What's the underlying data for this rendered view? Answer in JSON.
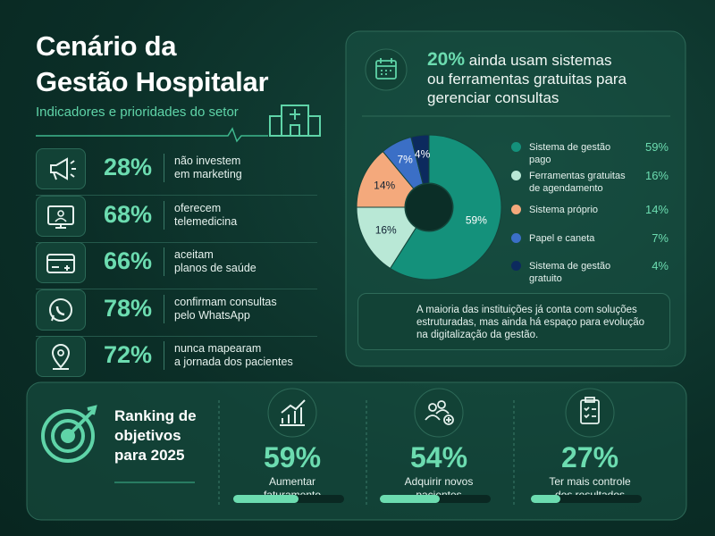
{
  "header": {
    "title_lines": [
      "Cenário da",
      "Gestão Hospitalar"
    ],
    "subtitle": "Indicadores e prioridades do setor"
  },
  "stats": [
    {
      "value": "28%",
      "lines": [
        "não investem",
        "em marketing"
      ]
    },
    {
      "value": "68%",
      "lines": [
        "oferecem",
        "telemedicina"
      ]
    },
    {
      "value": "66%",
      "lines": [
        "aceitam",
        "planos de saúde"
      ]
    },
    {
      "value": "78%",
      "lines": [
        "confirmam consultas",
        "pelo WhatsApp"
      ]
    },
    {
      "value": "72%",
      "lines": [
        "nunca mapearam",
        "a jornada dos pacientes"
      ]
    }
  ],
  "donut_panel": {
    "highlight": "20%",
    "lines": [
      "ainda usam sistemas",
      "ou ferramentas gratuitas para",
      "gerenciar consultas"
    ],
    "note": "A maioria das instituições já conta com soluções estruturadas, mas ainda há espaço para evolução na digitalização da gestão."
  },
  "chart_data": {
    "type": "donut",
    "categories": [
      "Sistema de gestão pago",
      "Ferramentas gratuitas de agendamento",
      "Sistema próprio",
      "Papel e caneta",
      "Sistema de gestão gratuito"
    ],
    "values": [
      59,
      16,
      14,
      7,
      4
    ],
    "value_labels": [
      "59%",
      "16%",
      "14%",
      "7%",
      "4%"
    ],
    "colors": [
      "#14917b",
      "#b9e8d6",
      "#f4a97c",
      "#3b6fc6",
      "#0c2a5e"
    ]
  },
  "ranking": {
    "title_lines": [
      "Ranking de",
      "objetivos",
      "para 2025"
    ],
    "items": [
      {
        "value": 59,
        "label": "59%",
        "text": "Aumentar faturamento"
      },
      {
        "value": 54,
        "label": "54%",
        "text": "Adquirir novos pacientes"
      },
      {
        "value": 27,
        "label": "27%",
        "text": "Ter mais controle dos resultados"
      }
    ]
  }
}
